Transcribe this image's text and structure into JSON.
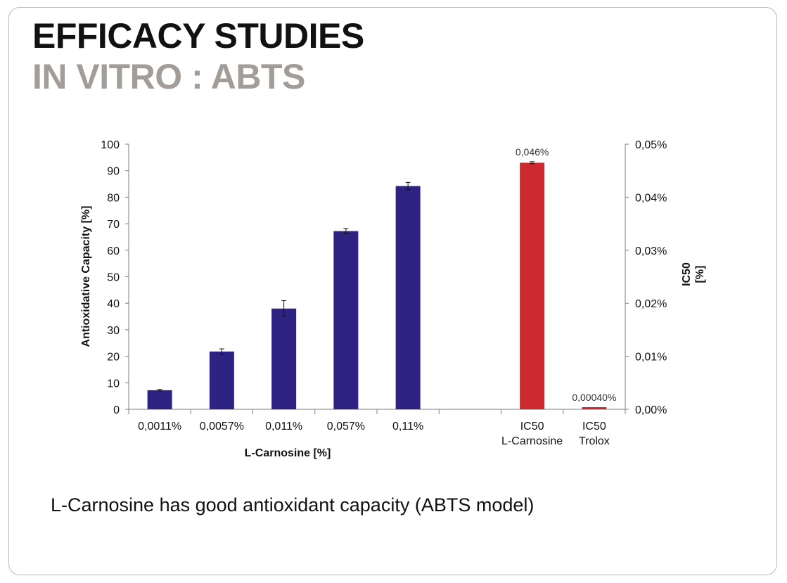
{
  "slide": {
    "title": "EFFICACY STUDIES",
    "subtitle": "IN VITRO : ABTS",
    "caption": "L-Carnosine has good antioxidant capacity (ABTS model)"
  },
  "colors": {
    "primary_bar": "#2e2283",
    "ic50_bar": "#cc2a2e",
    "title": "#111111",
    "subtitle": "#a29d99"
  },
  "chart_data": {
    "type": "bar",
    "xlabel": "L-Carnosine [%]",
    "ylabel": "Antioxidative Capacity [%]",
    "y2label_lines": [
      "IC50",
      "[%]"
    ],
    "ylim": [
      0,
      100
    ],
    "yticks": [
      0,
      10,
      20,
      30,
      40,
      50,
      60,
      70,
      80,
      90,
      100
    ],
    "y2lim": [
      0,
      0.05
    ],
    "y2ticks": [
      "0,00%",
      "0,01%",
      "0,02%",
      "0,03%",
      "0,04%",
      "0,05%"
    ],
    "grid": false,
    "legend": "none",
    "categories": [
      "0,0011%",
      "0,0057%",
      "0,011%",
      "0,057%",
      "0,11%",
      "",
      "IC50\nL-Carnosine",
      "IC50\nTrolox"
    ],
    "series": [
      {
        "axis": "left",
        "color": "#2e2283",
        "values": [
          7.2,
          21.8,
          38.0,
          67.2,
          84.2,
          null,
          null,
          null
        ],
        "errors": [
          0.3,
          1.0,
          3.0,
          1.0,
          1.4,
          null,
          null,
          null
        ]
      },
      {
        "axis": "right",
        "color": "#cc2a2e",
        "values": [
          null,
          null,
          null,
          null,
          null,
          null,
          0.0465,
          0.0004
        ],
        "errors": [
          null,
          null,
          null,
          null,
          null,
          null,
          0.0002,
          null
        ],
        "data_labels": [
          "",
          "",
          "",
          "",
          "",
          "",
          "0,046%",
          "0,00040%"
        ]
      }
    ]
  }
}
